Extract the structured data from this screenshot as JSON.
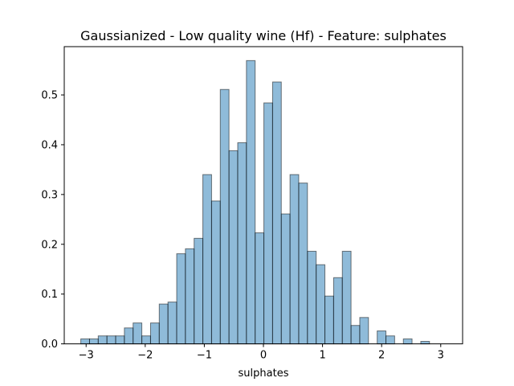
{
  "chart_data": {
    "type": "bar",
    "title": "Gaussianized - Low quality wine (Hf) - Feature: sulphates",
    "xlabel": "sulphates",
    "ylabel": "",
    "xlim": [
      -3.37,
      3.37
    ],
    "ylim": [
      0,
      0.597
    ],
    "xticks": [
      -3,
      -2,
      -1,
      0,
      1,
      2,
      3
    ],
    "xtick_labels": [
      "−3",
      "−2",
      "−1",
      "0",
      "1",
      "2",
      "3"
    ],
    "yticks": [
      0.0,
      0.1,
      0.2,
      0.3,
      0.4,
      0.5
    ],
    "ytick_labels": [
      "0.0",
      "0.1",
      "0.2",
      "0.3",
      "0.4",
      "0.5"
    ],
    "bin_start": -3.09,
    "bin_width": 0.1475,
    "values": [
      0.01,
      0.01,
      0.016,
      0.016,
      0.016,
      0.032,
      0.042,
      0.016,
      0.042,
      0.08,
      0.084,
      0.181,
      0.191,
      0.212,
      0.34,
      0.287,
      0.511,
      0.388,
      0.404,
      0.569,
      0.223,
      0.484,
      0.526,
      0.261,
      0.34,
      0.323,
      0.186,
      0.159,
      0.096,
      0.133,
      0.186,
      0.037,
      0.053,
      0.0,
      0.026,
      0.016,
      0.0,
      0.01,
      0.0,
      0.005
    ],
    "colors": {
      "bar_fill": "#1f77b4",
      "bar_alpha": 0.5,
      "bar_edge": "#000000"
    },
    "grid": false,
    "legend": "none"
  }
}
